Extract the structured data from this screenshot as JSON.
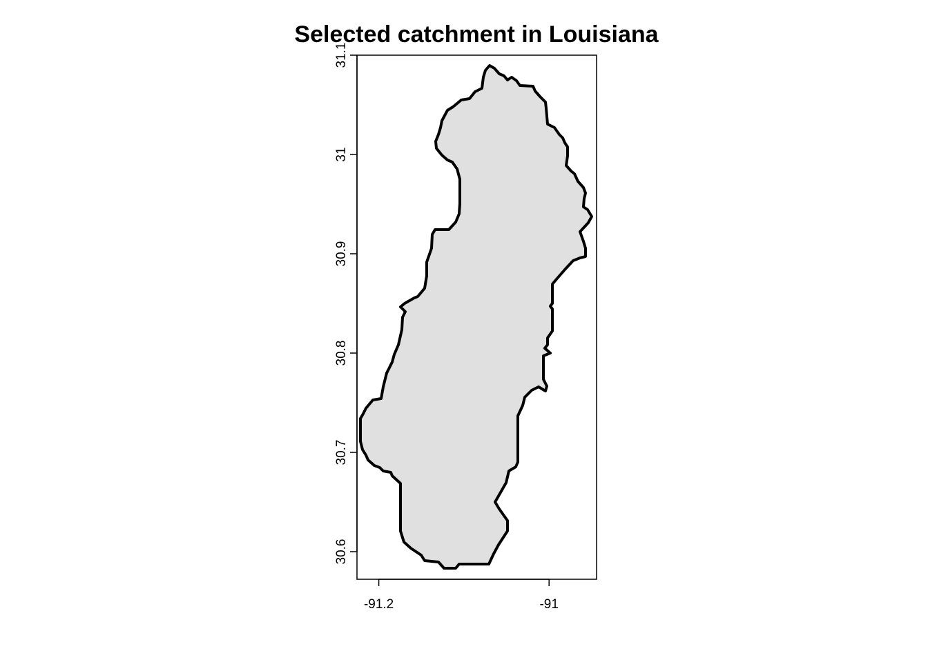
{
  "title": "Selected catchment in Louisiana",
  "fill_color": "#e0e0e0",
  "border_color": "#000000",
  "x_axis": {
    "ticks": [
      {
        "value": -91.2,
        "label": "-91.2"
      },
      {
        "value": -91.0,
        "label": "-91"
      }
    ]
  },
  "y_axis": {
    "ticks": [
      {
        "value": 30.6,
        "label": "30.6"
      },
      {
        "value": 30.7,
        "label": "30.7"
      },
      {
        "value": 30.8,
        "label": "30.8"
      },
      {
        "value": 30.9,
        "label": "30.9"
      },
      {
        "value": 31.0,
        "label": "31"
      },
      {
        "value": 31.1,
        "label": "31.1"
      }
    ]
  }
}
